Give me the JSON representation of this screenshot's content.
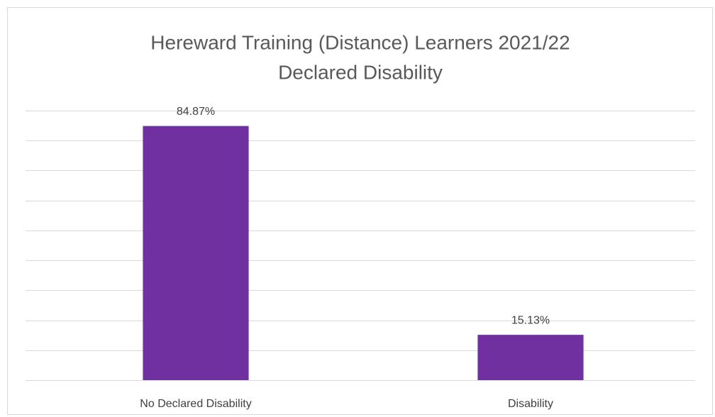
{
  "chart_data": {
    "type": "bar",
    "title": [
      "Hereward Training (Distance) Learners 2021/22",
      "Declared Disability"
    ],
    "categories": [
      "No Declared Disability",
      "Disability"
    ],
    "values": [
      84.87,
      15.13
    ],
    "value_labels": [
      "84.87%",
      "15.13%"
    ],
    "color": "#7030a0",
    "ylim": [
      0,
      90
    ],
    "yticks": [
      0,
      10,
      20,
      30,
      40,
      50,
      60,
      70,
      80,
      90
    ],
    "grid": true
  }
}
